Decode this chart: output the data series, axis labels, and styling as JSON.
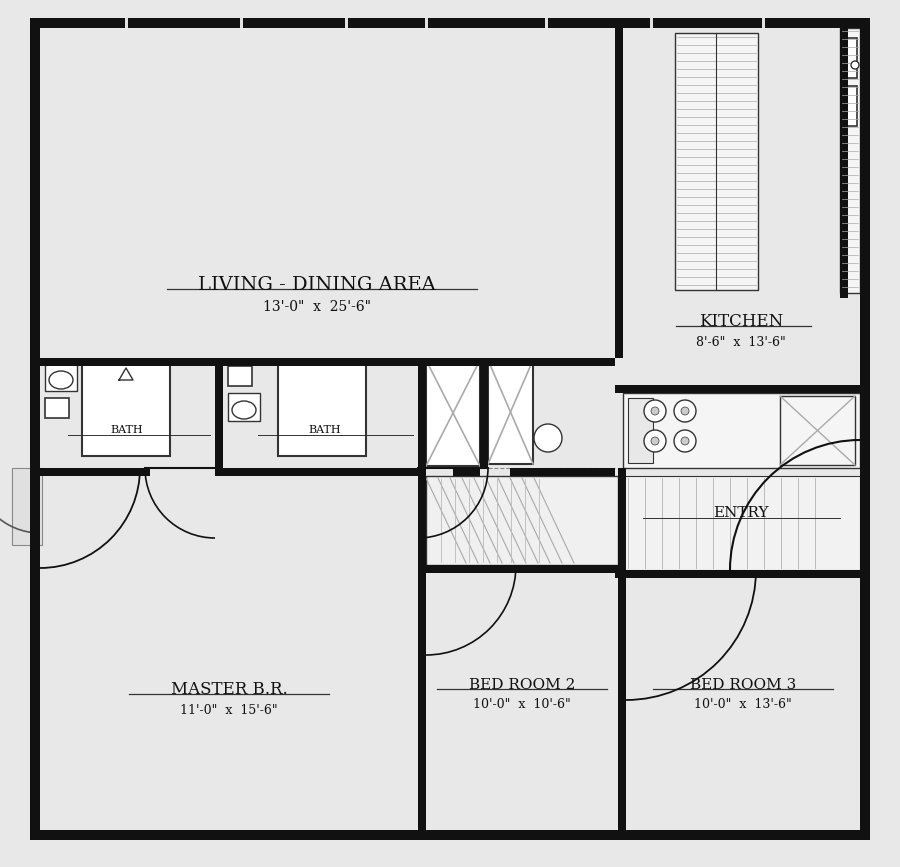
{
  "bg_color": "#e8e8e8",
  "wall_color": "#111111",
  "line_color": "#333333",
  "light_color": "#888888",
  "rooms": {
    "living_dining": {
      "label": "LIVING - DINING AREA",
      "dim": "13'-0\"  x  25'-6\""
    },
    "kitchen": {
      "label": "KITCHEN",
      "dim": "8'-6\"  x  13'-6\""
    },
    "master_br": {
      "label": "MASTER B.R.",
      "dim": "11'-0\"  x  15'-6\""
    },
    "bedroom2": {
      "label": "BED ROOM 2",
      "dim": "10'-0\"  x  10'-6\""
    },
    "bedroom3": {
      "label": "BED ROOM 3",
      "dim": "10'-0\"  x  13'-6\""
    },
    "bath1": {
      "label": "BATH"
    },
    "bath2": {
      "label": "BATH"
    },
    "entry": {
      "label": "ENTRY"
    }
  }
}
